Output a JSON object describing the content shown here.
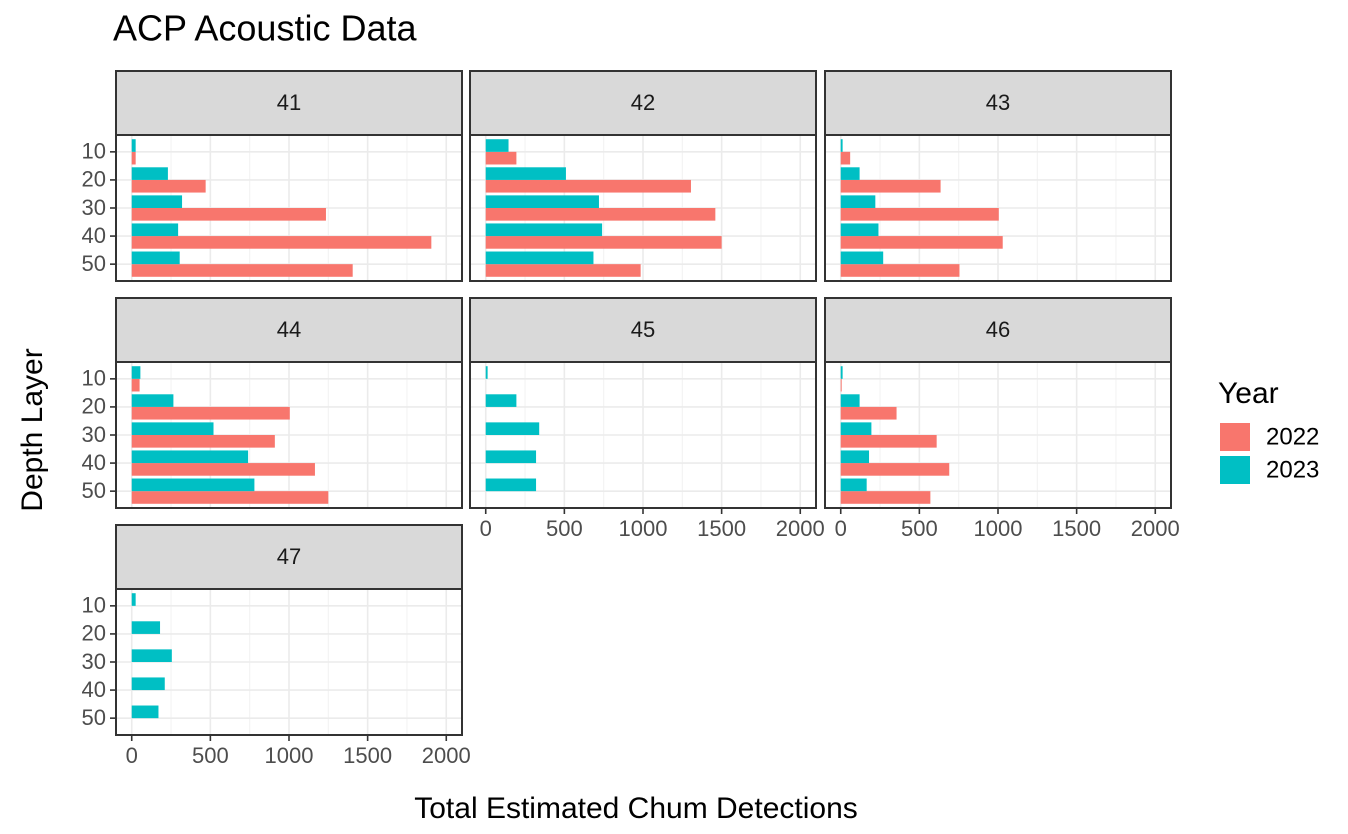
{
  "chart_data": {
    "type": "bar",
    "orientation": "horizontal",
    "title": "ACP Acoustic Data",
    "x_label": "Total Estimated Chum Detections",
    "y_label": "Depth Layer",
    "legend_title": "Year",
    "legend_position": "right",
    "grid": true,
    "categories": [
      "10",
      "20",
      "30",
      "40",
      "50"
    ],
    "series": [
      {
        "name": "2022",
        "color": "#F8766D"
      },
      {
        "name": "2023",
        "color": "#00BFC4"
      }
    ],
    "xlim": [
      -100,
      2100
    ],
    "xticks": [
      0,
      500,
      1000,
      1500,
      2000
    ],
    "panels": [
      {
        "label": "41",
        "values": [
          [
            25,
            470,
            1235,
            1905,
            1405
          ],
          [
            25,
            230,
            320,
            295,
            305
          ]
        ]
      },
      {
        "label": "42",
        "values": [
          [
            195,
            1305,
            1460,
            1500,
            985
          ],
          [
            145,
            510,
            720,
            740,
            685
          ]
        ]
      },
      {
        "label": "43",
        "values": [
          [
            60,
            635,
            1005,
            1030,
            755
          ],
          [
            12,
            120,
            220,
            240,
            270
          ]
        ]
      },
      {
        "label": "44",
        "values": [
          [
            50,
            1005,
            910,
            1165,
            1250
          ],
          [
            55,
            265,
            520,
            740,
            780
          ]
        ]
      },
      {
        "label": "45",
        "values": [
          [
            null,
            null,
            null,
            null,
            null
          ],
          [
            12,
            195,
            340,
            320,
            320
          ]
        ]
      },
      {
        "label": "46",
        "values": [
          [
            6,
            355,
            610,
            690,
            570
          ],
          [
            12,
            120,
            195,
            180,
            165
          ]
        ]
      },
      {
        "label": "47",
        "values": [
          [
            null,
            null,
            null,
            null,
            null
          ],
          [
            25,
            180,
            255,
            210,
            170
          ]
        ]
      }
    ]
  }
}
